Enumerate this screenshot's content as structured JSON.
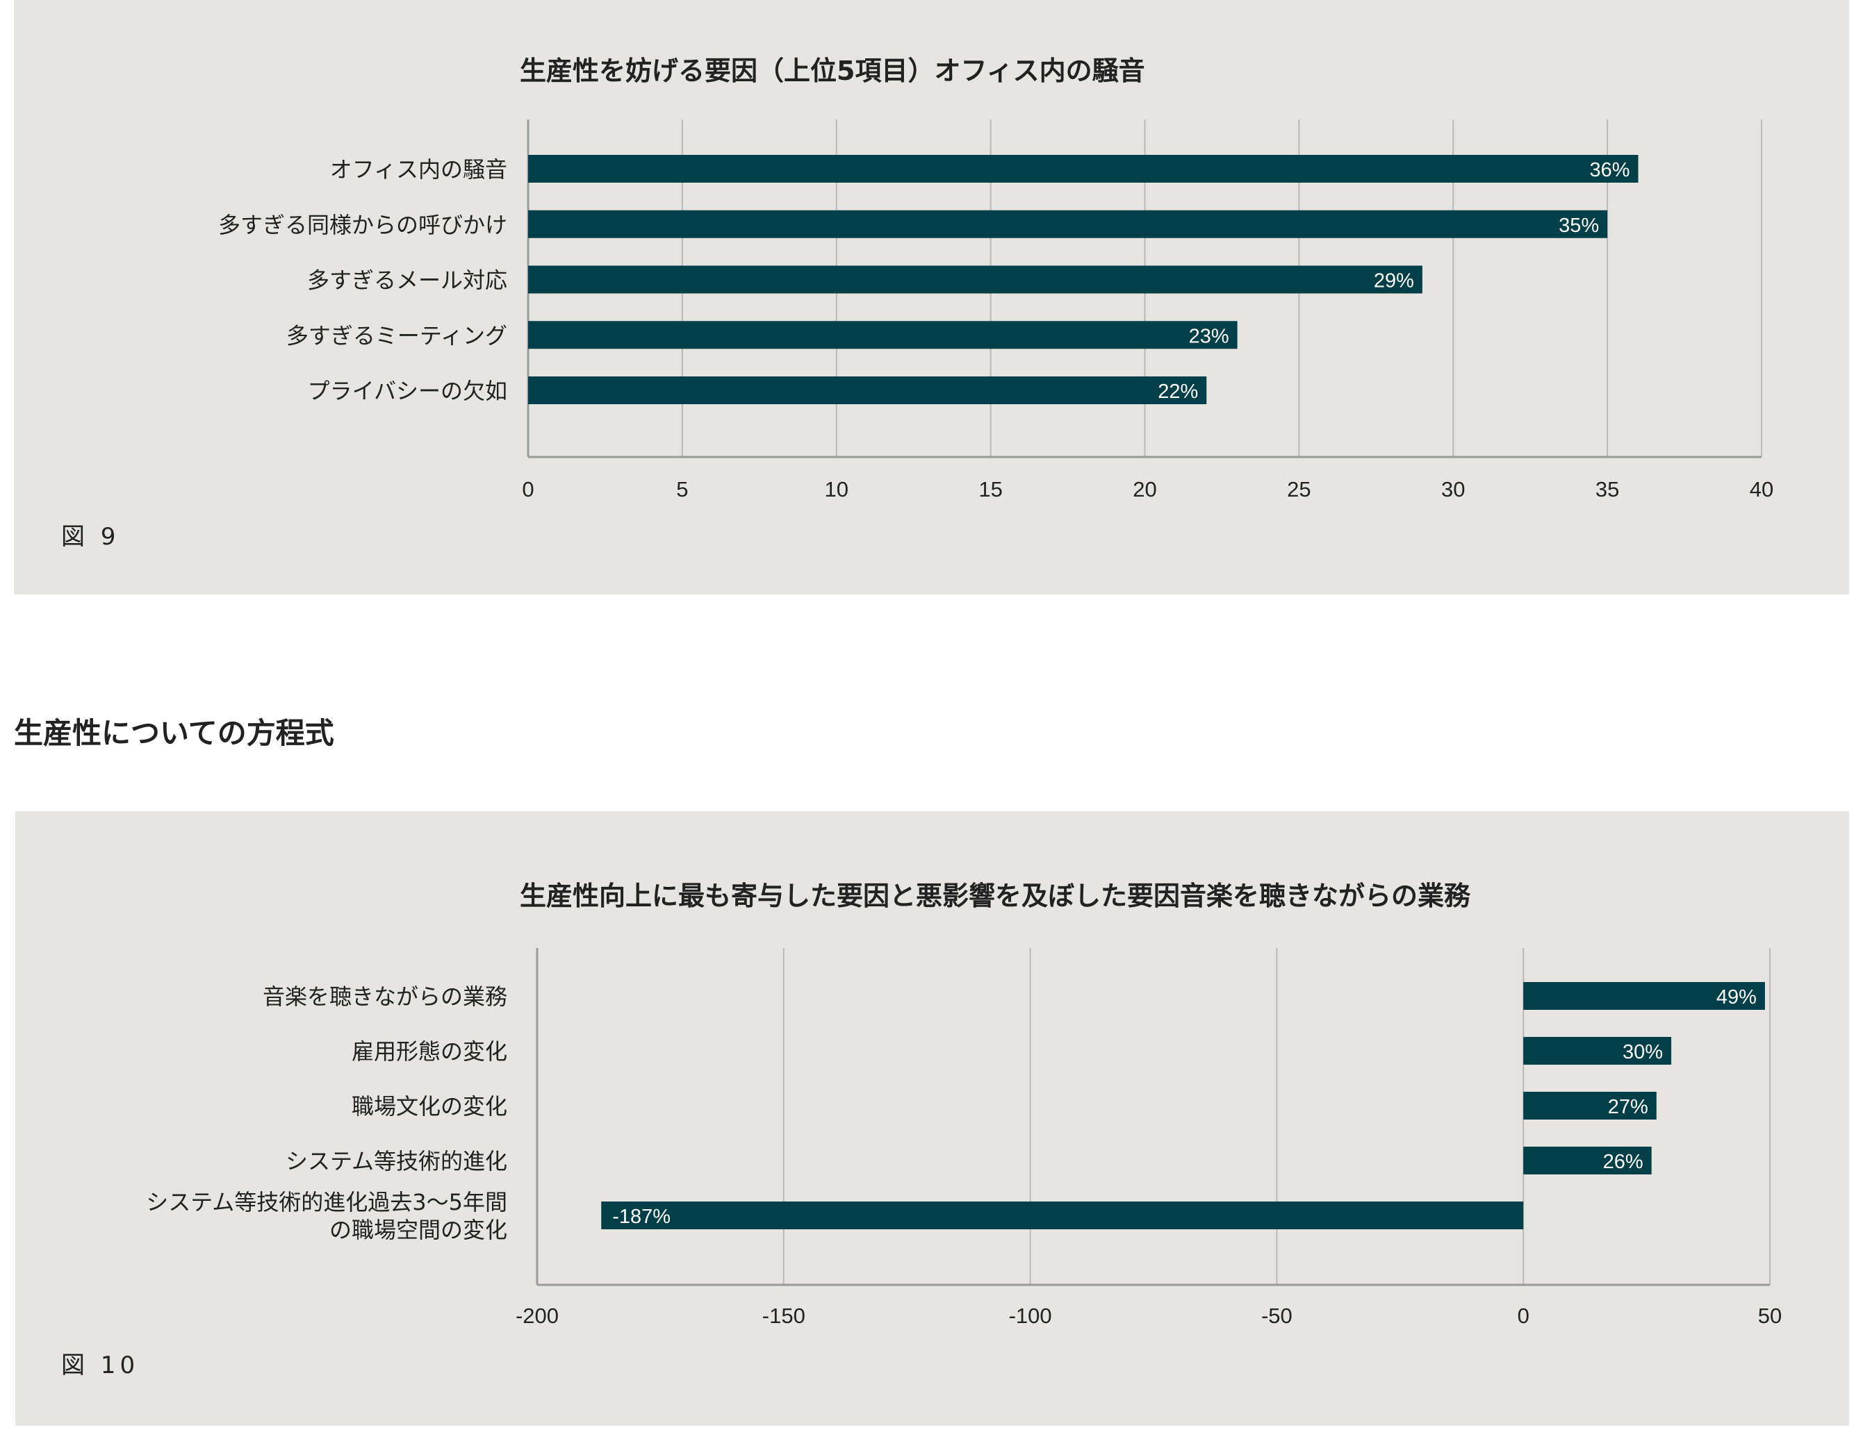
{
  "section_heading": "生産性についての方程式",
  "figures": [
    {
      "label": "図 9"
    },
    {
      "label": "図 10"
    }
  ],
  "colors": {
    "bar": "#033f48",
    "panel_bg": "#e6e5e2",
    "grid": "#b9b9b9",
    "axis": "#9a9a9a",
    "bar_label": "#ffffff"
  },
  "chart_data": [
    {
      "type": "bar",
      "orientation": "horizontal",
      "title": "生産性を妨げる要因（上位5項目）オフィス内の騒音",
      "categories": [
        "オフィス内の騒音",
        "多すぎる同様からの呼びかけ",
        "多すぎるメール対応",
        "多すぎるミーティング",
        "プライバシーの欠如"
      ],
      "values": [
        36,
        35,
        29,
        23,
        22
      ],
      "value_labels": [
        "36%",
        "35%",
        "29%",
        "23%",
        "22%"
      ],
      "xlim": [
        0,
        40
      ],
      "xticks": [
        "0",
        "5",
        "10",
        "15",
        "20",
        "25",
        "30",
        "35",
        "40"
      ],
      "xtick_values": [
        0,
        5,
        10,
        15,
        20,
        25,
        30,
        35,
        40
      ],
      "grid": true,
      "legend": "none"
    },
    {
      "type": "bar",
      "orientation": "horizontal",
      "title": "生産性向上に最も寄与した要因と悪影響を及ぼした要因音楽を聴きながらの業務",
      "categories": [
        "音楽を聴きながらの業務",
        "雇用形態の変化",
        "職場文化の変化",
        "システム等技術的進化",
        "システム等技術的進化過去3〜5年間\nの職場空間の変化"
      ],
      "values": [
        49,
        30,
        27,
        26,
        -187
      ],
      "value_labels": [
        "49%",
        "30%",
        "27%",
        "26%",
        "-187%"
      ],
      "xlim": [
        -200,
        50
      ],
      "xticks": [
        "-200",
        "-150",
        "-100",
        "-50",
        "0",
        "50"
      ],
      "xtick_values": [
        -200,
        -150,
        -100,
        -50,
        0,
        50
      ],
      "grid": true,
      "legend": "none"
    }
  ]
}
